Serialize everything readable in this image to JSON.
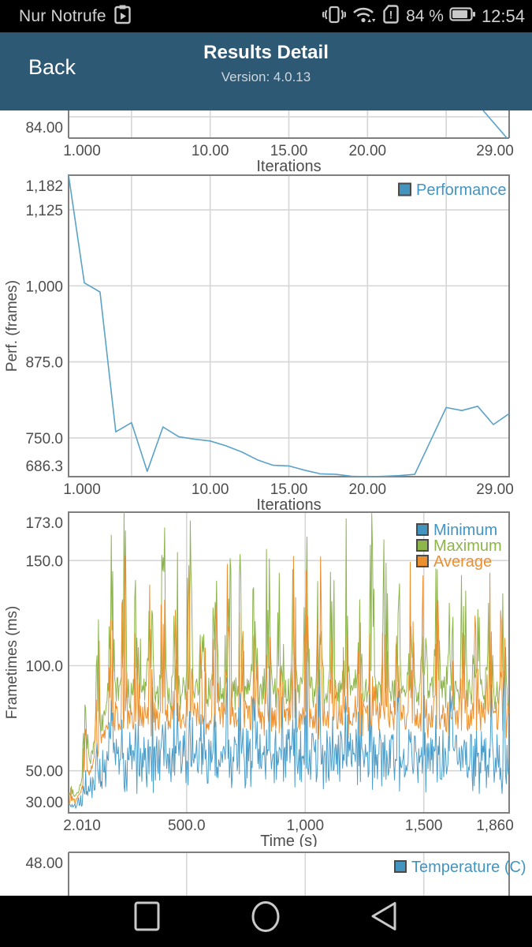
{
  "colors": {
    "header_bg": "#2d5974",
    "status_fg": "#d2d2d2",
    "nav_icon": "#c9c9c9",
    "chart_text": "#4d4d4d",
    "grid": "#d6d6d6",
    "plot_border": "#7f7f7f",
    "legend_blue": "#4395c0",
    "line_blue": "#5aa2c8",
    "green": "#8db54b",
    "orange": "#ec8f2e"
  },
  "status_bar": {
    "carrier": "Nur Notrufe",
    "battery_percent": "84 %",
    "time": "12:54"
  },
  "app_bar": {
    "back_label": "Back",
    "title": "Results Detail",
    "subtitle": "Version: 4.0.13"
  },
  "chart_data": [
    {
      "id": "fps_partial",
      "type": "line",
      "note": "Top chart scrolled mostly out of view; only bottom sliver, one y tick (84.00 = axis minimum) and the x axis are visible. Blue line descends to the bottom-right corner (reaches 84.00 at iteration 29).",
      "xlabel": "Iterations",
      "xlim": [
        1,
        29
      ],
      "x_ticks": [
        {
          "v": 1,
          "label": "1.000"
        },
        {
          "v": 10,
          "label": "10.00"
        },
        {
          "v": 15,
          "label": "15.00"
        },
        {
          "v": 20,
          "label": "20.00"
        },
        {
          "v": 29,
          "label": "29.00"
        }
      ],
      "x_grid": [
        5,
        10,
        15,
        20,
        25
      ],
      "y_tick_visible": "84.00",
      "series": [
        {
          "name": "unlabeled (cut off)",
          "color": "#5aa2c8",
          "visible_segment_frac": [
            [
              0.941,
              0.0
            ],
            [
              0.995,
              1.0
            ]
          ]
        }
      ]
    },
    {
      "id": "performance",
      "type": "line",
      "xlabel": "Iterations",
      "ylabel": "Perf. (frames)",
      "xlim": [
        1,
        29
      ],
      "ylim": [
        686.3,
        1182
      ],
      "x_ticks": [
        {
          "v": 1,
          "label": "1.000"
        },
        {
          "v": 10,
          "label": "10.00"
        },
        {
          "v": 15,
          "label": "15.00"
        },
        {
          "v": 20,
          "label": "20.00"
        },
        {
          "v": 29,
          "label": "29.00"
        }
      ],
      "x_grid": [
        5,
        10,
        15,
        20,
        25
      ],
      "y_ticks": [
        {
          "v": 1182,
          "label": "1,182"
        },
        {
          "v": 1125,
          "label": "1,125"
        },
        {
          "v": 1000,
          "label": "1,000"
        },
        {
          "v": 875,
          "label": "875.0"
        },
        {
          "v": 750,
          "label": "750.0"
        },
        {
          "v": 686.3,
          "label": "686.3"
        }
      ],
      "y_grid": [
        1125,
        1000,
        875,
        750,
        686.3
      ],
      "legend": [
        {
          "label": "Performance",
          "color": "#4395c0"
        }
      ],
      "legend_position": "top-right",
      "grid": true,
      "series": [
        {
          "name": "Performance",
          "color": "#5aa2c8",
          "x": [
            1,
            2,
            3,
            4,
            5,
            6,
            7,
            8,
            9,
            10,
            11,
            12,
            13,
            14,
            15,
            16,
            17,
            18,
            19,
            20,
            21,
            22,
            23,
            24,
            25,
            26,
            27,
            28,
            29
          ],
          "values": [
            1182,
            1005,
            990,
            760,
            775,
            695,
            768,
            752,
            748,
            745,
            737,
            727,
            714,
            705,
            704,
            697,
            691,
            690,
            687,
            686.3,
            687,
            688,
            690,
            745,
            800,
            795,
            802,
            772,
            790
          ]
        }
      ]
    },
    {
      "id": "frametimes",
      "type": "line",
      "xlabel": "Time (s)",
      "ylabel": "Frametimes (ms)",
      "xlim": [
        2.01,
        1860
      ],
      "ylim": [
        30,
        173
      ],
      "x_ticks": [
        {
          "v": 2.01,
          "label": "2.010"
        },
        {
          "v": 500,
          "label": "500.0"
        },
        {
          "v": 1000,
          "label": "1,000"
        },
        {
          "v": 1500,
          "label": "1,500"
        },
        {
          "v": 1860,
          "label": "1,860"
        }
      ],
      "x_grid": [
        500,
        1000,
        1500
      ],
      "y_ticks": [
        {
          "v": 173,
          "label": "173.0"
        },
        {
          "v": 150,
          "label": "150.0"
        },
        {
          "v": 100,
          "label": "100.0"
        },
        {
          "v": 50,
          "label": "50.00"
        },
        {
          "v": 30,
          "label": "30.00"
        }
      ],
      "y_grid": [
        150,
        100,
        50
      ],
      "legend": [
        {
          "label": "Minimum",
          "color": "#4395c0"
        },
        {
          "label": "Maximum",
          "color": "#8db54b"
        },
        {
          "label": "Average",
          "color": "#ec8f2e"
        }
      ],
      "legend_position": "top-right",
      "note": "Three very dense noisy series over ~34 periodic burst cycles (period ~55 s). Values ramp up from ~35 ms during the first ~200 s, then bursts: Maximum spikes 90-173 ms, Average 72-152 ms, Minimum 31-107 ms; lull baselines ~87/76/57 ms. Per-sample values are synthesized from this envelope (exact samples not recoverable from pixels).",
      "generator": {
        "t0": 2,
        "t1": 1860,
        "n": 620,
        "period": 55,
        "burst_frac": 0.6,
        "ramp_start": 10,
        "ramp_len": 180,
        "ramp_floor": 0.12,
        "base_floor": 30,
        "series": [
          {
            "name": "Maximum",
            "color": "#8db54b",
            "seed": 7,
            "lull_base": 87,
            "lull_jit": 8,
            "burst_base": 90,
            "burst_jit": 8,
            "burst_amp": 86,
            "spike_gain": 1.5,
            "peak": 173,
            "floor": 31
          },
          {
            "name": "Average",
            "color": "#ec8f2e",
            "seed": 13,
            "lull_base": 76,
            "lull_jit": 7,
            "burst_base": 72,
            "burst_jit": 8,
            "burst_amp": 80,
            "spike_gain": 1.35,
            "peak": 152,
            "floor": 31
          },
          {
            "name": "Minimum",
            "color": "#4b9dc9",
            "seed": 21,
            "lull_base": 57,
            "lull_jit": 13,
            "burst_base": 50,
            "burst_jit": 12,
            "burst_amp": 52,
            "spike_gain": 1.3,
            "peak": 107,
            "floor": 31
          }
        ]
      }
    },
    {
      "id": "temperature_partial",
      "type": "line",
      "note": "Bottom chart cut off by navigation bar; only top sliver visible: one y tick (48.00 = axis maximum), legend, vertical gridlines shared with Time (s) axis. No data line visible in the sliver.",
      "xlim": [
        2.01,
        1860
      ],
      "x_grid": [
        500,
        1000,
        1500
      ],
      "y_tick_visible": "48.00",
      "legend": [
        {
          "label": "Temperature (C)",
          "color": "#4395c0"
        }
      ],
      "legend_position": "top-right"
    }
  ]
}
